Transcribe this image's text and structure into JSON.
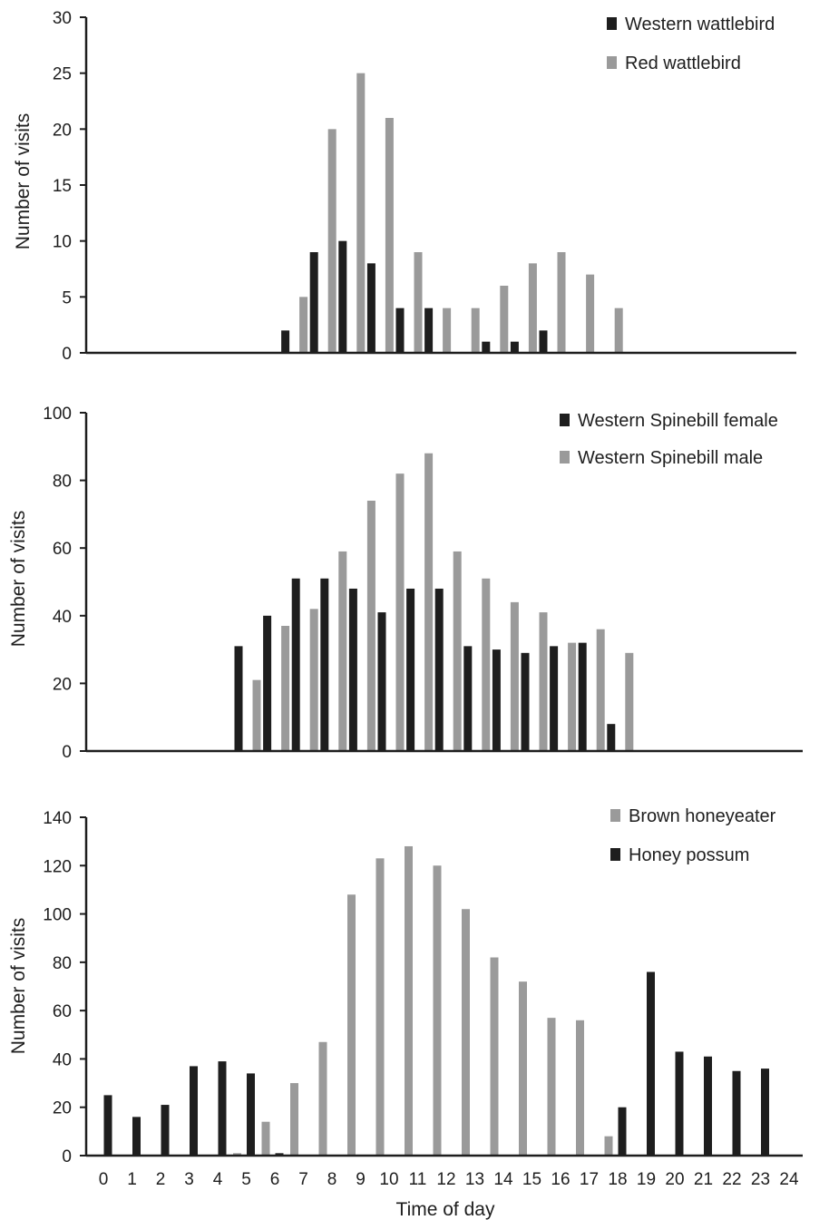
{
  "colors": {
    "dark": "#1e1e1e",
    "light": "#9a9a9a",
    "axis": "#1e1e1e"
  },
  "xlabel": "Time of day",
  "chart_data": [
    {
      "type": "bar",
      "ylabel": "Number of visits",
      "ylim": [
        0,
        30
      ],
      "yticks": [
        0,
        5,
        10,
        15,
        20,
        25,
        30
      ],
      "x": [
        0,
        1,
        2,
        3,
        4,
        5,
        6,
        7,
        8,
        9,
        10,
        11,
        12,
        13,
        14,
        15,
        16,
        17,
        18,
        19,
        20,
        21,
        22,
        23,
        24
      ],
      "legend_position": "top-right",
      "series": [
        {
          "name": "Western wattlebird",
          "color": "dark",
          "values": [
            0,
            0,
            0,
            0,
            0,
            0,
            2,
            9,
            10,
            8,
            4,
            4,
            0,
            1,
            1,
            2,
            0,
            0,
            0,
            0,
            0,
            0,
            0,
            0,
            0
          ]
        },
        {
          "name": "Red wattlebird",
          "color": "light",
          "values": [
            0,
            0,
            0,
            0,
            0,
            0,
            5,
            20,
            25,
            21,
            9,
            4,
            4,
            6,
            8,
            9,
            7,
            4,
            0,
            0,
            0,
            0,
            0,
            0,
            0
          ]
        }
      ]
    },
    {
      "type": "bar",
      "ylabel": "Number of visits",
      "ylim": [
        0,
        100
      ],
      "yticks": [
        0,
        20,
        40,
        60,
        80,
        100
      ],
      "x": [
        0,
        1,
        2,
        3,
        4,
        5,
        6,
        7,
        8,
        9,
        10,
        11,
        12,
        13,
        14,
        15,
        16,
        17,
        18,
        19,
        20,
        21,
        22,
        23,
        24
      ],
      "legend_position": "top-right",
      "series": [
        {
          "name": "Western Spinebill female",
          "color": "dark",
          "values": [
            0,
            0,
            0,
            0,
            0,
            31,
            40,
            51,
            51,
            48,
            41,
            48,
            48,
            31,
            30,
            29,
            31,
            32,
            8,
            0,
            0,
            0,
            0,
            0,
            0
          ]
        },
        {
          "name": "Western Spinebill male",
          "color": "light",
          "values": [
            0,
            0,
            0,
            0,
            0,
            21,
            37,
            42,
            59,
            74,
            82,
            88,
            59,
            51,
            44,
            41,
            32,
            36,
            29,
            0,
            0,
            0,
            0,
            0,
            0
          ]
        }
      ]
    },
    {
      "type": "bar",
      "ylabel": "Number of visits",
      "ylim": [
        0,
        140
      ],
      "yticks": [
        0,
        20,
        40,
        60,
        80,
        100,
        120,
        140
      ],
      "x": [
        0,
        1,
        2,
        3,
        4,
        5,
        6,
        7,
        8,
        9,
        10,
        11,
        12,
        13,
        14,
        15,
        16,
        17,
        18,
        19,
        20,
        21,
        22,
        23,
        24
      ],
      "xticks": [
        "0",
        "1",
        "2",
        "3",
        "4",
        "5",
        "6",
        "7",
        "8",
        "9",
        "10",
        "11",
        "12",
        "13",
        "14",
        "15",
        "16",
        "17",
        "18",
        "19",
        "20",
        "21",
        "22",
        "23",
        "24"
      ],
      "legend_position": "top-right",
      "series": [
        {
          "name": "Brown honeyeater",
          "color": "light",
          "values": [
            0,
            0,
            0,
            0,
            0,
            1,
            14,
            30,
            47,
            108,
            123,
            128,
            120,
            102,
            82,
            72,
            57,
            56,
            8,
            0,
            0,
            0,
            0,
            0,
            0
          ]
        },
        {
          "name": "Honey possum",
          "color": "dark",
          "values": [
            25,
            16,
            21,
            37,
            39,
            34,
            1,
            0,
            0,
            0,
            0,
            0,
            0,
            0,
            0,
            0,
            0,
            0,
            20,
            76,
            43,
            41,
            35,
            36,
            0
          ]
        }
      ]
    }
  ]
}
